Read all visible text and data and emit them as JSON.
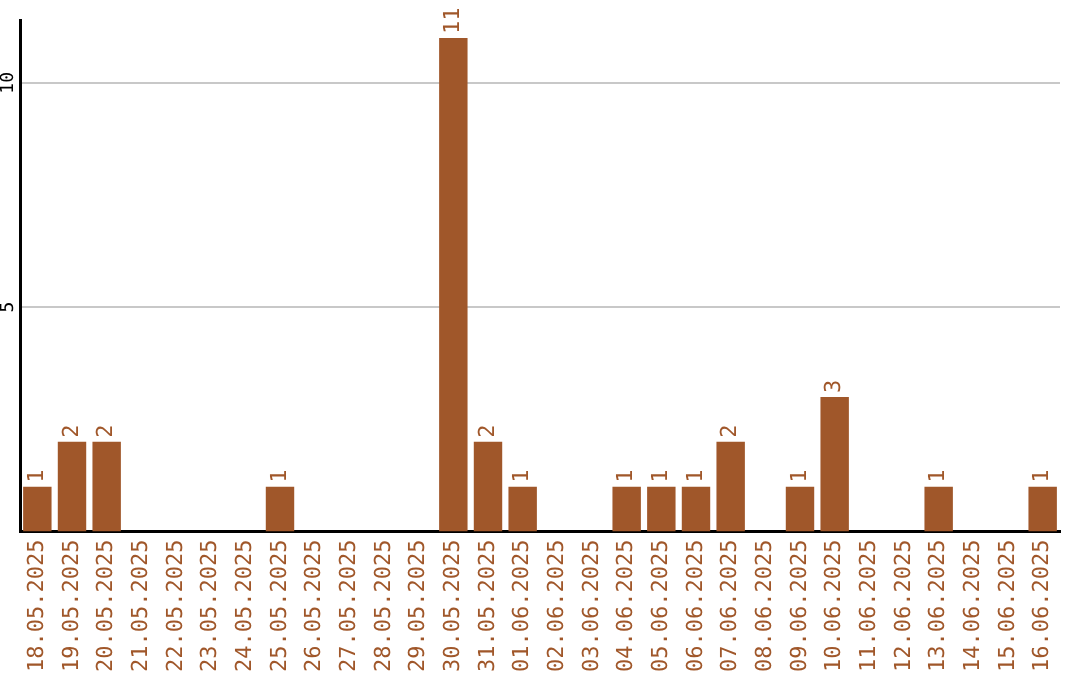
{
  "chart_data": {
    "type": "bar",
    "categories": [
      "18.05.2025",
      "19.05.2025",
      "20.05.2025",
      "21.05.2025",
      "22.05.2025",
      "23.05.2025",
      "24.05.2025",
      "25.05.2025",
      "26.05.2025",
      "27.05.2025",
      "28.05.2025",
      "29.05.2025",
      "30.05.2025",
      "31.05.2025",
      "01.06.2025",
      "02.06.2025",
      "03.06.2025",
      "04.06.2025",
      "05.06.2025",
      "06.06.2025",
      "07.06.2025",
      "08.06.2025",
      "09.06.2025",
      "10.06.2025",
      "11.06.2025",
      "12.06.2025",
      "13.06.2025",
      "14.06.2025",
      "15.06.2025",
      "16.06.2025"
    ],
    "values": [
      1,
      2,
      2,
      0,
      0,
      0,
      0,
      1,
      0,
      0,
      0,
      0,
      11,
      2,
      1,
      0,
      0,
      1,
      1,
      1,
      2,
      0,
      1,
      3,
      0,
      0,
      1,
      0,
      0,
      1
    ],
    "value_labels": [
      "1",
      "2",
      "2",
      null,
      null,
      null,
      null,
      "1",
      null,
      null,
      null,
      null,
      "11",
      "2",
      "1",
      null,
      null,
      "1",
      "1",
      "1",
      "2",
      null,
      "1",
      "3",
      null,
      null,
      "1",
      null,
      null,
      "1"
    ],
    "color": "#a0572a",
    "ylim": [
      0,
      11.4
    ],
    "yticks": [
      5,
      10
    ],
    "grid": "y",
    "legend": false
  }
}
